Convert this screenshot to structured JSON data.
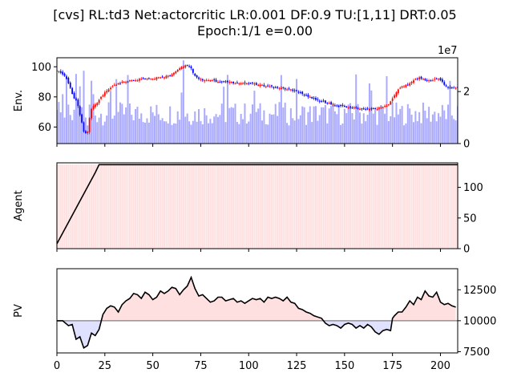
{
  "title_line1": "[cvs] RL:td3 Net:actorcritic LR:0.001 DF:0.9 TU:[1,11] DRT:0.05",
  "title_line2": "Epoch:1/1 e=0.00",
  "chart_data": [
    {
      "type": "candlestick",
      "ylabel": "Env.",
      "xlim": [
        0,
        209
      ],
      "ylim": [
        49,
        106
      ],
      "yticks": [
        60,
        80,
        100
      ],
      "secondary_axis": {
        "offset_label": "1e7",
        "ylim": [
          0,
          3.3
        ],
        "yticks": [
          0,
          2
        ],
        "series": "volume (bars)"
      },
      "colors": {
        "up": "#ff0000",
        "down": "#0000ff",
        "volume": "#aaaaff"
      },
      "close_approx": [
        97,
        97,
        96,
        95,
        94,
        92,
        89,
        86,
        82,
        79,
        78,
        74,
        68,
        63,
        57,
        56,
        57,
        66,
        72,
        74,
        75,
        76,
        78,
        80,
        81,
        83,
        84,
        85,
        86,
        87,
        88,
        88,
        89,
        89,
        90,
        90,
        90,
        90,
        91,
        91,
        91,
        91,
        91,
        92,
        92,
        92,
        92,
        92,
        92,
        92,
        92,
        92,
        93,
        93,
        93,
        93,
        93,
        94,
        94,
        94,
        95,
        96,
        97,
        98,
        99,
        100,
        100,
        101,
        101,
        100,
        99,
        96,
        94,
        93,
        92,
        92,
        91,
        91,
        91,
        91,
        91,
        91,
        91,
        90,
        90,
        90,
        90,
        90,
        90,
        90,
        90,
        90,
        89,
        89,
        89,
        89,
        89,
        89,
        89,
        89,
        89,
        89,
        89,
        89,
        88,
        88,
        88,
        88,
        87,
        87,
        87,
        87,
        87,
        86,
        86,
        86,
        86,
        86,
        86,
        85,
        85,
        85,
        85,
        84,
        84,
        84,
        83,
        83,
        82,
        81,
        81,
        80,
        80,
        79,
        79,
        78,
        78,
        77,
        77,
        77,
        76,
        76,
        76,
        75,
        75,
        74,
        74,
        74,
        74,
        74,
        74,
        73,
        73,
        73,
        73,
        73,
        73,
        72,
        72,
        72,
        72,
        72,
        72,
        72,
        72,
        72,
        72,
        72,
        73,
        73,
        73,
        74,
        74,
        75,
        77,
        79,
        81,
        83,
        85,
        86,
        87,
        87,
        88,
        88,
        89,
        90,
        91,
        92,
        92,
        93,
        92,
        92,
        91,
        91,
        91,
        91,
        91,
        92,
        92,
        92,
        91,
        90,
        88,
        87,
        86,
        86,
        86,
        86,
        86,
        86
      ]
    },
    {
      "type": "line",
      "ylabel": "Agent",
      "xlim": [
        0,
        209
      ],
      "ylim": [
        0,
        140
      ],
      "yticks": [
        0,
        50,
        100
      ],
      "series": [
        {
          "x": [
            0,
            20,
            22,
            209
          ],
          "values": [
            8,
            124,
            137,
            137
          ]
        }
      ],
      "background_bars_color": "#ffe0e0"
    },
    {
      "type": "line",
      "ylabel": "PV",
      "xlim": [
        0,
        209
      ],
      "ylim": [
        7400,
        14200
      ],
      "yticks": [
        7500,
        10000,
        12500
      ],
      "xticks": [
        0,
        25,
        50,
        75,
        100,
        125,
        150,
        175,
        200
      ],
      "baseline": 10000,
      "fill_colors": {
        "above": "#ffe0e0",
        "below": "#e0e0ff"
      },
      "x": [
        0,
        3,
        6,
        8,
        10,
        12,
        14,
        16,
        18,
        20,
        22,
        24,
        26,
        28,
        30,
        32,
        34,
        36,
        38,
        40,
        42,
        44,
        46,
        48,
        50,
        52,
        54,
        56,
        58,
        60,
        62,
        64,
        66,
        68,
        70,
        72,
        74,
        76,
        78,
        80,
        82,
        84,
        86,
        88,
        90,
        92,
        94,
        96,
        98,
        100,
        102,
        104,
        106,
        108,
        110,
        112,
        114,
        116,
        118,
        120,
        122,
        124,
        126,
        128,
        130,
        132,
        134,
        136,
        138,
        140,
        142,
        144,
        146,
        148,
        150,
        152,
        154,
        156,
        158,
        160,
        162,
        164,
        166,
        168,
        170,
        172,
        174,
        175,
        176,
        178,
        180,
        182,
        184,
        186,
        188,
        190,
        192,
        194,
        196,
        198,
        200,
        202,
        204,
        206,
        208
      ],
      "values": [
        10000,
        10000,
        9600,
        9700,
        8500,
        8700,
        7800,
        8000,
        9000,
        8800,
        9300,
        10500,
        11000,
        11200,
        11100,
        10700,
        11300,
        11600,
        11800,
        12200,
        12100,
        11800,
        12300,
        12100,
        11700,
        11900,
        12400,
        12200,
        12400,
        12700,
        12600,
        12100,
        12500,
        12800,
        13500,
        12600,
        12000,
        12100,
        11800,
        11500,
        11600,
        11900,
        11900,
        11600,
        11700,
        11800,
        11500,
        11600,
        11400,
        11600,
        11800,
        11700,
        11800,
        11500,
        11900,
        11800,
        11900,
        11800,
        11600,
        11900,
        11500,
        11400,
        11000,
        10900,
        10700,
        10600,
        10400,
        10300,
        10200,
        9800,
        9600,
        9700,
        9600,
        9400,
        9700,
        9800,
        9700,
        9400,
        9600,
        9400,
        9700,
        9500,
        9100,
        8900,
        9200,
        9300,
        9200,
        10200,
        10400,
        10700,
        10700,
        11100,
        11600,
        11300,
        11900,
        11700,
        12400,
        12000,
        11900,
        12300,
        11500,
        11300,
        11400,
        11200,
        11100
      ]
    }
  ]
}
